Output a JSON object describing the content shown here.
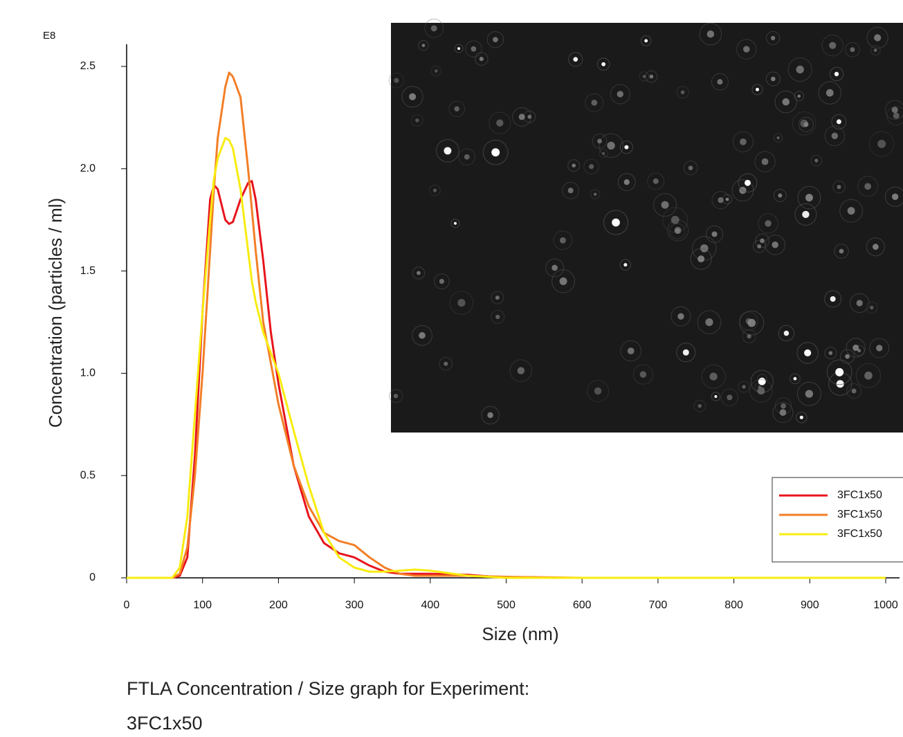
{
  "chart_data": {
    "type": "line",
    "y_multiplier": "E8",
    "x_label": "Size (nm)",
    "y_label": "Concentration (particles / ml)",
    "caption": "FTLA Concentration / Size graph for Experiment:",
    "caption_sample": "3FC1x50",
    "x": [
      0,
      20,
      40,
      60,
      70,
      80,
      90,
      100,
      110,
      115,
      120,
      130,
      135,
      140,
      150,
      160,
      165,
      170,
      180,
      190,
      200,
      220,
      240,
      260,
      280,
      300,
      320,
      340,
      360,
      380,
      400,
      450,
      500,
      600,
      700,
      800,
      900,
      1000
    ],
    "series": [
      {
        "name": "3FC1x50",
        "color": "#e8141c",
        "values": [
          0,
          0,
          0,
          0,
          0.01,
          0.1,
          0.6,
          1.3,
          1.85,
          1.92,
          1.9,
          1.75,
          1.73,
          1.74,
          1.85,
          1.93,
          1.94,
          1.85,
          1.55,
          1.2,
          0.95,
          0.55,
          0.3,
          0.17,
          0.12,
          0.1,
          0.06,
          0.03,
          0.02,
          0.02,
          0.02,
          0.015,
          0,
          0,
          0,
          0,
          0,
          0
        ]
      },
      {
        "name": "3FC1x50",
        "color": "#f37e26",
        "values": [
          0,
          0,
          0,
          0,
          0.02,
          0.15,
          0.5,
          1.0,
          1.6,
          1.9,
          2.15,
          2.4,
          2.47,
          2.45,
          2.35,
          2.0,
          1.8,
          1.6,
          1.25,
          1.05,
          0.85,
          0.55,
          0.35,
          0.22,
          0.18,
          0.16,
          0.1,
          0.05,
          0.02,
          0.01,
          0.01,
          0.01,
          0.005,
          0,
          0,
          0,
          0,
          0
        ]
      },
      {
        "name": "3FC1x50",
        "color": "#f8ec0e",
        "values": [
          0,
          0,
          0,
          0,
          0.05,
          0.3,
          0.8,
          1.3,
          1.75,
          1.95,
          2.05,
          2.15,
          2.14,
          2.1,
          1.9,
          1.6,
          1.45,
          1.35,
          1.2,
          1.1,
          1.0,
          0.72,
          0.45,
          0.22,
          0.1,
          0.05,
          0.03,
          0.03,
          0.035,
          0.04,
          0.035,
          0.01,
          0,
          0,
          0,
          0,
          0,
          0
        ]
      }
    ],
    "xlim": [
      0,
      1000
    ],
    "xticks": [
      0,
      100,
      200,
      300,
      400,
      500,
      600,
      700,
      800,
      900,
      1000
    ],
    "ylim": [
      0,
      2.5
    ],
    "yticks": [
      0,
      0.5,
      {
        "value": 1,
        "label": "1.0"
      },
      1.5,
      {
        "value": 2,
        "label": "2.0"
      },
      2.5
    ],
    "legend": "right"
  }
}
